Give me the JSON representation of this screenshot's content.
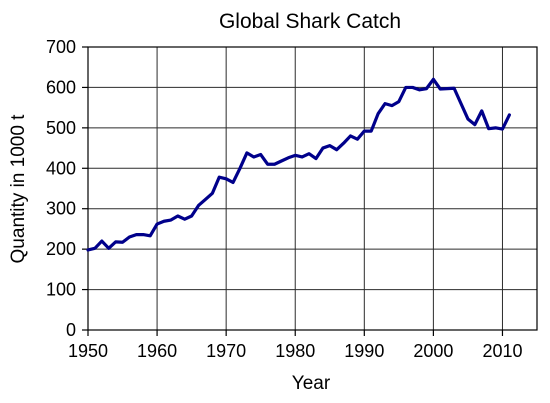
{
  "chart_data": {
    "type": "line",
    "title": "Global Shark Catch",
    "xlabel": "Year",
    "ylabel": "Quantity in 1000 t",
    "xlim": [
      1950,
      2015
    ],
    "ylim": [
      0,
      700
    ],
    "xticks": [
      1950,
      1960,
      1970,
      1980,
      1990,
      2000,
      2010
    ],
    "yticks": [
      0,
      100,
      200,
      300,
      400,
      500,
      600,
      700
    ],
    "grid": true,
    "line_color": "#00008b",
    "series": [
      {
        "x": [
          1950,
          1951,
          1952,
          1953,
          1954,
          1955,
          1956,
          1957,
          1958,
          1959,
          1960,
          1961,
          1962,
          1963,
          1964,
          1965,
          1966,
          1967,
          1968,
          1969,
          1970,
          1971,
          1972,
          1973,
          1974,
          1975,
          1976,
          1977,
          1978,
          1979,
          1980,
          1981,
          1982,
          1983,
          1984,
          1985,
          1986,
          1987,
          1988,
          1989,
          1990,
          1991,
          1992,
          1993,
          1994,
          1995,
          1996,
          1997,
          1998,
          1999,
          2000,
          2001,
          2002,
          2003,
          2004,
          2005,
          2006,
          2007,
          2008,
          2009,
          2010,
          2011
        ],
        "values": [
          198,
          202,
          220,
          202,
          218,
          217,
          230,
          236,
          236,
          233,
          262,
          269,
          272,
          282,
          274,
          282,
          308,
          323,
          338,
          378,
          374,
          365,
          400,
          438,
          428,
          434,
          410,
          410,
          418,
          426,
          432,
          428,
          436,
          424,
          450,
          456,
          446,
          462,
          480,
          472,
          492,
          492,
          535,
          560,
          555,
          565,
          600,
          600,
          594,
          597,
          620,
          596,
          597,
          598,
          560,
          522,
          508,
          542,
          498,
          500,
          497,
          532
        ]
      }
    ]
  }
}
